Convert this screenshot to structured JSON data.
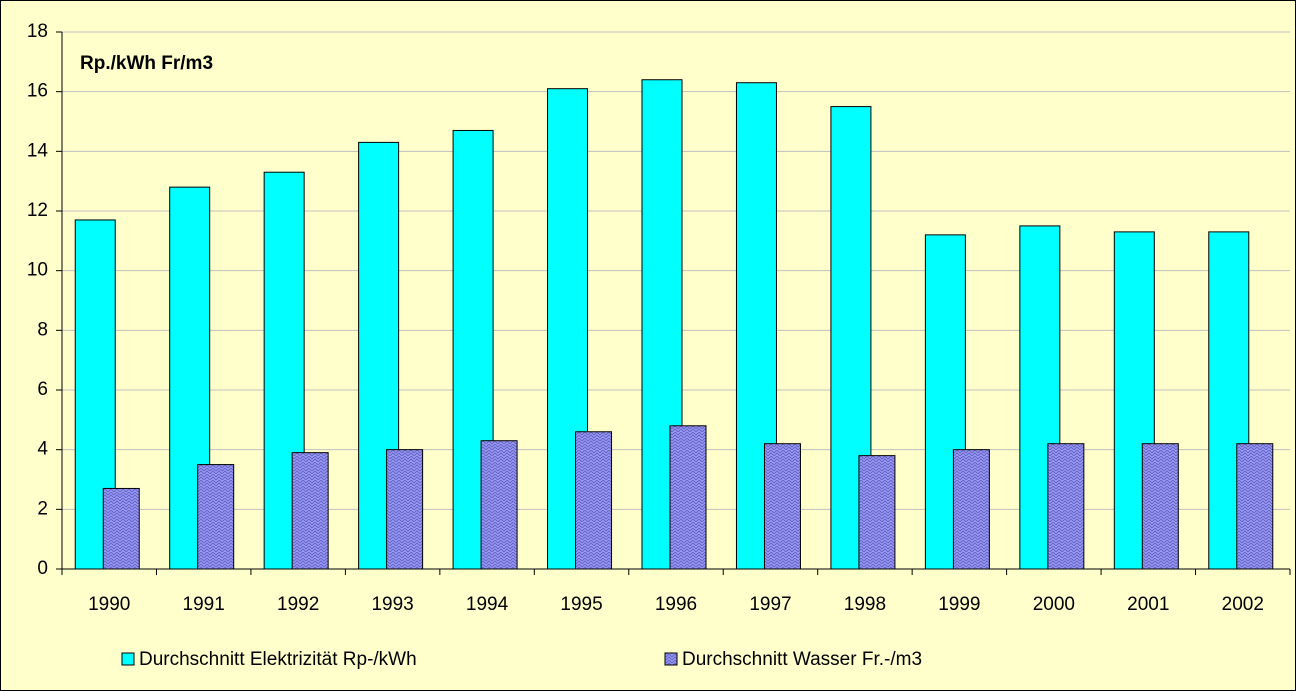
{
  "chart_data": {
    "type": "bar",
    "annotation": "Rp./kWh  Fr/m3",
    "categories": [
      "1990",
      "1991",
      "1992",
      "1993",
      "1994",
      "1995",
      "1996",
      "1997",
      "1998",
      "1999",
      "2000",
      "2001",
      "2002"
    ],
    "series": [
      {
        "name": "Durchschnitt Elektrizität Rp-/kWh",
        "color": "#00FFFF",
        "values": [
          11.7,
          12.8,
          13.3,
          14.3,
          14.7,
          16.1,
          16.4,
          16.3,
          15.5,
          11.2,
          11.5,
          11.3,
          11.3
        ]
      },
      {
        "name": "Durchschnitt Wasser Fr.-/m3",
        "color": "#9999FF",
        "values": [
          2.7,
          3.5,
          3.9,
          4.0,
          4.3,
          4.6,
          4.8,
          4.2,
          3.8,
          4.0,
          4.2,
          4.2,
          4.2
        ]
      }
    ],
    "ylim": [
      0,
      18
    ],
    "yticks": [
      0,
      2,
      4,
      6,
      8,
      10,
      12,
      14,
      16,
      18
    ],
    "grid": true
  }
}
